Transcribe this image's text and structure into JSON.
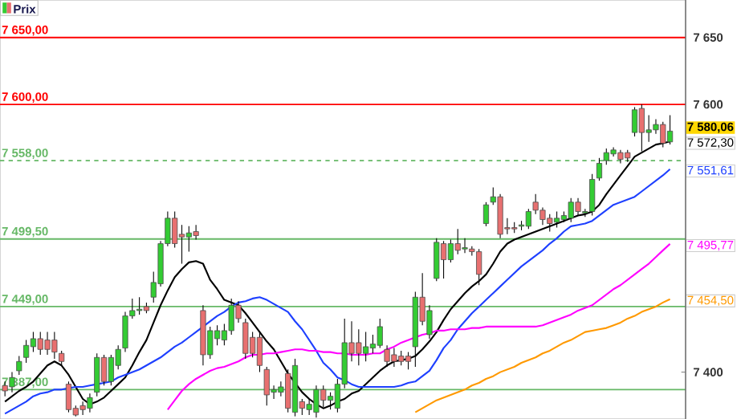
{
  "chart_data": {
    "type": "candlestick",
    "legend": "top left",
    "tick_labels": "y",
    "ylim": [
      7365,
      7678
    ],
    "categories": [
      null,
      null,
      null,
      null,
      null,
      null,
      null,
      null,
      null,
      null,
      null,
      null,
      null,
      null,
      null,
      null,
      null,
      null,
      null,
      null,
      null,
      null,
      null,
      null,
      null,
      null,
      null,
      null,
      null,
      null,
      null,
      null,
      null,
      null,
      null,
      null,
      null,
      null,
      null,
      null,
      null,
      null,
      null,
      null,
      null,
      null,
      null,
      null,
      null,
      null,
      null,
      null,
      null,
      null,
      null,
      null,
      null,
      null,
      null,
      null,
      null,
      null,
      null,
      null,
      null,
      null,
      null,
      null,
      null,
      null,
      null,
      null,
      null,
      null,
      null,
      null,
      null,
      null,
      null,
      null,
      null,
      null,
      null,
      null,
      null,
      null,
      null,
      null,
      null,
      null,
      null,
      null,
      null,
      null,
      null
    ],
    "yticks": [
      {
        "value": 7400,
        "label": "7 400"
      },
      {
        "value": 7600,
        "label": "7 600"
      },
      {
        "value": 7650,
        "label": "7 650"
      }
    ],
    "ref_lines": [
      {
        "axis": "y",
        "value": 7650,
        "label": "7 650,00",
        "color": "#ff0000",
        "line_style": "solid"
      },
      {
        "axis": "y",
        "value": 7600,
        "label": "7 600,00",
        "color": "#ff0000",
        "line_style": "solid"
      },
      {
        "axis": "y",
        "value": 7558,
        "label": "7 558,00",
        "color": "#66b866",
        "line_style": "dashed"
      },
      {
        "axis": "y",
        "value": 7499.5,
        "label": "7 499,50",
        "color": "#66b866",
        "line_style": "solid"
      },
      {
        "axis": "y",
        "value": 7449,
        "label": "7 449,00",
        "color": "#66b866",
        "line_style": "solid"
      },
      {
        "axis": "y",
        "value": 7387,
        "label": "7 387,00",
        "color": "#66b866",
        "line_style": "solid"
      }
    ],
    "series": [
      {
        "name": "Prix",
        "value_labels": [
          null,
          null,
          null,
          null,
          null,
          null,
          null,
          null,
          null,
          null,
          null,
          null,
          null,
          null,
          null,
          null,
          null,
          null,
          null,
          null,
          null,
          null,
          null,
          null,
          null,
          null,
          null,
          null,
          null,
          null,
          null,
          null,
          null,
          null,
          null,
          null,
          null,
          null,
          null,
          null,
          null,
          null,
          null,
          null,
          null,
          null,
          null,
          null,
          null,
          null,
          null,
          null,
          null,
          null,
          null,
          null,
          null,
          null,
          null,
          null,
          null,
          null,
          null,
          null,
          null,
          null,
          null,
          null,
          null,
          null,
          null,
          null,
          null,
          null,
          null,
          null,
          null,
          null,
          null,
          null,
          null,
          null,
          null,
          null,
          null,
          null,
          null,
          null,
          null,
          null,
          null,
          null,
          null,
          null,
          "7 580,06"
        ],
        "colors": [
          "#e87070",
          "#33cc33",
          "#33cc33",
          "#33cc33",
          "#33cc33",
          "#e87070",
          "#e87070",
          "#e87070",
          "#e87070",
          "#e87070",
          "#e87070",
          "#e87070",
          "#33cc33",
          "#33cc33",
          "#e87070",
          "#33cc33",
          "#33cc33",
          "#33cc33",
          "#33cc33",
          "#33cc33",
          "#e87070",
          "#33cc33",
          "#33cc33",
          "#33cc33",
          "#e87070",
          "#e87070",
          "#33cc33",
          "#e87070",
          "#e87070",
          "#33cc33",
          "#33cc33",
          "#33cc33",
          "#33cc33",
          "#e87070",
          "#e87070",
          "#e87070",
          "#e87070",
          "#e87070",
          "#33cc33",
          "#33cc33",
          "#e87070",
          "#33cc33",
          "#e87070",
          "#33cc33",
          "#33cc33",
          "#e87070",
          "#33cc33",
          "#33cc33",
          "#33cc33",
          "#e87070",
          "#e87070",
          "#33cc33",
          "#33cc33",
          "#33cc33",
          "#e87070",
          "#e87070",
          "#e87070",
          "#e87070",
          "#33cc33",
          "#e87070",
          "#33cc33",
          "#33cc33",
          "#e87070",
          "#33cc33",
          "#e87070",
          "#33cc33",
          "#e87070",
          "#e87070",
          "#33cc33",
          "#33cc33",
          "#e87070",
          "#e87070",
          "#e87070",
          "#33cc33",
          "#33cc33",
          "#e87070",
          "#e87070",
          "#e87070",
          "#33cc33",
          "#33cc33",
          "#33cc33",
          "#e87070",
          "#33cc33",
          "#33cc33",
          "#33cc33",
          "#33cc33",
          "#33cc33",
          "#e87070",
          "#e87070",
          "#33cc33",
          "#e87070",
          "#33cc33",
          "#33cc33",
          "#e87070",
          "#33cc33"
        ],
        "ohlc": [
          [
            7390,
            7393,
            7382,
            7386
          ],
          [
            7389,
            7400,
            7385,
            7396
          ],
          [
            7401,
            7412,
            7398,
            7408
          ],
          [
            7411,
            7424,
            7407,
            7420
          ],
          [
            7419,
            7430,
            7415,
            7425
          ],
          [
            7425,
            7430,
            7413,
            7417
          ],
          [
            7424,
            7430,
            7413,
            7417
          ],
          [
            7424,
            7430,
            7410,
            7415
          ],
          [
            7414,
            7416,
            7405,
            7408
          ],
          [
            7391,
            7393,
            7370,
            7372
          ],
          [
            7373,
            7375,
            7367,
            7368
          ],
          [
            7375,
            7378,
            7368,
            7372
          ],
          [
            7373,
            7384,
            7370,
            7381
          ],
          [
            7385,
            7414,
            7382,
            7411
          ],
          [
            7411,
            7413,
            7390,
            7393
          ],
          [
            7393,
            7413,
            7390,
            7411
          ],
          [
            7405,
            7420,
            7402,
            7417
          ],
          [
            7418,
            7445,
            7415,
            7442
          ],
          [
            7442,
            7455,
            7440,
            7446
          ],
          [
            7446,
            7456,
            7443,
            7447
          ],
          [
            7449,
            7452,
            7444,
            7446
          ],
          [
            7456,
            7475,
            7452,
            7467
          ],
          [
            7466,
            7498,
            7464,
            7496
          ],
          [
            7496,
            7520,
            7494,
            7515
          ],
          [
            7515,
            7520,
            7493,
            7496
          ],
          [
            7503,
            7510,
            7481,
            7501
          ],
          [
            7501,
            7509,
            7490,
            7504
          ],
          [
            7505,
            7510,
            7499,
            7502
          ],
          [
            7446,
            7450,
            7405,
            7413
          ],
          [
            7413,
            7434,
            7410,
            7431
          ],
          [
            7425,
            7435,
            7420,
            7431
          ],
          [
            7424,
            7436,
            7420,
            7431
          ],
          [
            7431,
            7455,
            7428,
            7450
          ],
          [
            7450,
            7453,
            7437,
            7440
          ],
          [
            7437,
            7440,
            7410,
            7414
          ],
          [
            7426,
            7430,
            7411,
            7414
          ],
          [
            7426,
            7430,
            7400,
            7405
          ],
          [
            7402,
            7404,
            7375,
            7383
          ],
          [
            7385,
            7390,
            7380,
            7387
          ],
          [
            7385,
            7393,
            7382,
            7389
          ],
          [
            7399,
            7402,
            7370,
            7373
          ],
          [
            7370,
            7410,
            7367,
            7405
          ],
          [
            7378,
            7380,
            7368,
            7373
          ],
          [
            7372,
            7380,
            7368,
            7376
          ],
          [
            7370,
            7390,
            7366,
            7387
          ],
          [
            7387,
            7390,
            7374,
            7379
          ],
          [
            7379,
            7385,
            7372,
            7382
          ],
          [
            7373,
            7395,
            7370,
            7391
          ],
          [
            7391,
            7440,
            7388,
            7422
          ],
          [
            7422,
            7438,
            7408,
            7414
          ],
          [
            7422,
            7432,
            7405,
            7414
          ],
          [
            7414,
            7430,
            7408,
            7419
          ],
          [
            7418,
            7428,
            7414,
            7421
          ],
          [
            7420,
            7440,
            7418,
            7434
          ],
          [
            7417,
            7420,
            7404,
            7408
          ],
          [
            7413,
            7418,
            7404,
            7408
          ],
          [
            7412,
            7416,
            7405,
            7408
          ],
          [
            7412,
            7415,
            7402,
            7408
          ],
          [
            7419,
            7460,
            7404,
            7456
          ],
          [
            7456,
            7474,
            7435,
            7438
          ],
          [
            7428,
            7450,
            7425,
            7446
          ],
          [
            7470,
            7500,
            7468,
            7497
          ],
          [
            7496,
            7498,
            7470,
            7484
          ],
          [
            7484,
            7499,
            7482,
            7496
          ],
          [
            7496,
            7507,
            7488,
            7491
          ],
          [
            7492,
            7500,
            7489,
            7493
          ],
          [
            7492,
            7494,
            7487,
            7490
          ],
          [
            7490,
            7492,
            7465,
            7473
          ],
          [
            7511,
            7527,
            7509,
            7525
          ],
          [
            7527,
            7538,
            7525,
            7531
          ],
          [
            7531,
            7533,
            7500,
            7503
          ],
          [
            7508,
            7515,
            7503,
            7507
          ],
          [
            7508,
            7512,
            7504,
            7507
          ],
          [
            7509,
            7513,
            7506,
            7510
          ],
          [
            7509,
            7522,
            7507,
            7520
          ],
          [
            7527,
            7533,
            7518,
            7521
          ],
          [
            7521,
            7523,
            7510,
            7514
          ],
          [
            7515,
            7518,
            7505,
            7511
          ],
          [
            7512,
            7520,
            7508,
            7515
          ],
          [
            7514,
            7520,
            7512,
            7517
          ],
          [
            7515,
            7530,
            7512,
            7527
          ],
          [
            7527,
            7530,
            7517,
            7520
          ],
          [
            7519,
            7522,
            7516,
            7520
          ],
          [
            7520,
            7548,
            7517,
            7544
          ],
          [
            7545,
            7560,
            7543,
            7556
          ],
          [
            7558,
            7567,
            7555,
            7564
          ],
          [
            7563,
            7568,
            7561,
            7566
          ],
          [
            7564,
            7566,
            7556,
            7559
          ],
          [
            7564,
            7566,
            7557,
            7560
          ],
          [
            7579,
            7598,
            7576,
            7596
          ],
          [
            7597,
            7600,
            7565,
            7579
          ],
          [
            7579,
            7592,
            7572,
            7581
          ],
          [
            7581,
            7589,
            7578,
            7585
          ],
          [
            7585,
            7587,
            7568,
            7571
          ],
          [
            7572,
            7592,
            7570,
            7580.06
          ]
        ]
      },
      {
        "type": "line",
        "color": "#000000",
        "value_labels": [
          null,
          null,
          null,
          null,
          null,
          null,
          null,
          null,
          null,
          null,
          null,
          null,
          null,
          null,
          null,
          null,
          null,
          null,
          null,
          null,
          null,
          null,
          null,
          null,
          null,
          null,
          null,
          null,
          null,
          null,
          null,
          null,
          null,
          null,
          null,
          null,
          null,
          null,
          null,
          null,
          null,
          null,
          null,
          null,
          null,
          null,
          null,
          null,
          null,
          null,
          null,
          null,
          null,
          null,
          null,
          null,
          null,
          null,
          null,
          null,
          null,
          null,
          null,
          null,
          null,
          null,
          null,
          null,
          null,
          null,
          null,
          null,
          null,
          null,
          null,
          null,
          null,
          null,
          null,
          null,
          null,
          null,
          null,
          null,
          null,
          null,
          null,
          null,
          null,
          null,
          null,
          null,
          null,
          null,
          "7 572,30"
        ],
        "values": [
          7378,
          7382,
          7386,
          7389,
          7393,
          7399,
          7405,
          7408,
          7405,
          7398,
          7389,
          7380,
          7376,
          7378,
          7381,
          7386,
          7391,
          7396,
          7405,
          7415,
          7424,
          7437,
          7450,
          7461,
          7471,
          7477,
          7482,
          7483,
          7481,
          7469,
          7462,
          7454,
          7452,
          7450,
          7444,
          7437,
          7430,
          7423,
          7417,
          7408,
          7399,
          7392,
          7385,
          7380,
          7376,
          7373,
          7375,
          7378,
          7380,
          7384,
          7386,
          7391,
          7396,
          7401,
          7405,
          7408,
          7409,
          7410,
          7412,
          7417,
          7423,
          7430,
          7439,
          7447,
          7453,
          7459,
          7464,
          7468,
          7473,
          7481,
          7490,
          7496,
          7499,
          7501,
          7503,
          7505,
          7507,
          7509,
          7511,
          7513,
          7515,
          7517,
          7518,
          7520,
          7525,
          7533,
          7540,
          7547,
          7554,
          7561,
          7564,
          7567,
          7570,
          7571,
          7572.3
        ]
      },
      {
        "type": "line",
        "color": "#1e40ff",
        "value_labels": [
          null,
          null,
          null,
          null,
          null,
          null,
          null,
          null,
          null,
          null,
          null,
          null,
          null,
          null,
          null,
          null,
          null,
          null,
          null,
          null,
          null,
          null,
          null,
          null,
          null,
          null,
          null,
          null,
          null,
          null,
          null,
          null,
          null,
          null,
          null,
          null,
          null,
          null,
          null,
          null,
          null,
          null,
          null,
          null,
          null,
          null,
          null,
          null,
          null,
          null,
          null,
          null,
          null,
          null,
          null,
          null,
          null,
          null,
          null,
          null,
          null,
          null,
          null,
          null,
          null,
          null,
          null,
          null,
          null,
          null,
          null,
          null,
          null,
          null,
          null,
          null,
          null,
          null,
          null,
          null,
          null,
          null,
          null,
          null,
          null,
          null,
          null,
          null,
          null,
          null,
          null,
          null,
          null,
          null,
          "7 551,61"
        ],
        "values": [
          7369,
          7372,
          7375,
          7378,
          7382,
          7384,
          7385,
          7387,
          7387,
          7388,
          7389,
          7389,
          7390,
          7391,
          7392,
          7393,
          7396,
          7398,
          7400,
          7402,
          7405,
          7408,
          7411,
          7415,
          7419,
          7422,
          7426,
          7430,
          7434,
          7438,
          7442,
          7445,
          7449,
          7452,
          7453,
          7455,
          7456,
          7454,
          7451,
          7448,
          7445,
          7438,
          7432,
          7424,
          7416,
          7407,
          7402,
          7396,
          7394,
          7391,
          7389,
          7389,
          7389,
          7389,
          7389,
          7389,
          7390,
          7392,
          7393,
          7397,
          7401,
          7409,
          7418,
          7424,
          7432,
          7438,
          7444,
          7449,
          7454,
          7459,
          7464,
          7469,
          7474,
          7479,
          7483,
          7487,
          7491,
          7496,
          7500,
          7505,
          7509,
          7510,
          7511,
          7513,
          7517,
          7521,
          7525,
          7527,
          7529,
          7531,
          7535,
          7539,
          7543,
          7547,
          7551.61
        ]
      },
      {
        "type": "line",
        "color": "#ff00ff",
        "value_labels": [
          null,
          null,
          null,
          null,
          null,
          null,
          null,
          null,
          null,
          null,
          null,
          null,
          null,
          null,
          null,
          null,
          null,
          null,
          null,
          null,
          null,
          null,
          null,
          null,
          null,
          null,
          null,
          null,
          null,
          null,
          null,
          null,
          null,
          null,
          null,
          null,
          null,
          null,
          null,
          null,
          null,
          null,
          null,
          null,
          null,
          null,
          null,
          null,
          null,
          null,
          null,
          null,
          null,
          null,
          null,
          null,
          null,
          null,
          null,
          null,
          null,
          null,
          null,
          null,
          null,
          null,
          null,
          null,
          null,
          null,
          null,
          null,
          null,
          null,
          null,
          null,
          null,
          null,
          null,
          null,
          null,
          null,
          null,
          null,
          null,
          null,
          null,
          null,
          null,
          null,
          null,
          null,
          null,
          null,
          "7 495,77"
        ],
        "values": [
          null,
          null,
          null,
          null,
          null,
          null,
          null,
          null,
          null,
          null,
          null,
          null,
          null,
          null,
          null,
          null,
          null,
          null,
          null,
          null,
          null,
          null,
          null,
          7372,
          7379,
          7386,
          7391,
          7395,
          7398,
          7401,
          7403,
          7404,
          7406,
          7408,
          7411,
          7413,
          7413,
          7414,
          7414,
          7415,
          7416,
          7417,
          7417,
          7416,
          7416,
          7415,
          7415,
          7414,
          7414,
          7413,
          7413,
          7413,
          7414,
          7414,
          7417,
          7419,
          7422,
          7424,
          7426,
          7428,
          7429,
          7431,
          7431,
          7432,
          7432,
          7432,
          7433,
          7433,
          7434,
          7434,
          7434,
          7434,
          7434,
          7434,
          7434,
          7434,
          7435,
          7437,
          7439,
          7441,
          7443,
          7446,
          7448,
          7450,
          7454,
          7458,
          7462,
          7465,
          7469,
          7473,
          7477,
          7481,
          7486,
          7491,
          7495.77
        ]
      },
      {
        "type": "line",
        "color": "#ff9900",
        "value_labels": [
          null,
          null,
          null,
          null,
          null,
          null,
          null,
          null,
          null,
          null,
          null,
          null,
          null,
          null,
          null,
          null,
          null,
          null,
          null,
          null,
          null,
          null,
          null,
          null,
          null,
          null,
          null,
          null,
          null,
          null,
          null,
          null,
          null,
          null,
          null,
          null,
          null,
          null,
          null,
          null,
          null,
          null,
          null,
          null,
          null,
          null,
          null,
          null,
          null,
          null,
          null,
          null,
          null,
          null,
          null,
          null,
          null,
          null,
          null,
          null,
          null,
          null,
          null,
          null,
          null,
          null,
          null,
          null,
          null,
          null,
          null,
          null,
          null,
          null,
          null,
          null,
          null,
          null,
          null,
          null,
          null,
          null,
          null,
          null,
          null,
          null,
          null,
          null,
          null,
          null,
          null,
          null,
          null,
          null,
          "7 454,50"
        ],
        "values": [
          null,
          null,
          null,
          null,
          null,
          null,
          null,
          null,
          null,
          null,
          null,
          null,
          null,
          null,
          null,
          null,
          null,
          null,
          null,
          null,
          null,
          null,
          null,
          null,
          null,
          null,
          null,
          null,
          null,
          null,
          null,
          null,
          null,
          null,
          null,
          null,
          null,
          null,
          null,
          null,
          null,
          null,
          null,
          null,
          null,
          null,
          null,
          null,
          null,
          null,
          null,
          null,
          null,
          null,
          null,
          null,
          null,
          null,
          7370,
          7373,
          7376,
          7379,
          7381,
          7383,
          7385,
          7387,
          7390,
          7392,
          7395,
          7397,
          7400,
          7402,
          7404,
          7407,
          7409,
          7411,
          7414,
          7416,
          7419,
          7422,
          7424,
          7427,
          7430,
          7431,
          7432,
          7433,
          7435,
          7437,
          7440,
          7442,
          7445,
          7447,
          7449,
          7452,
          7454.5
        ]
      }
    ]
  }
}
